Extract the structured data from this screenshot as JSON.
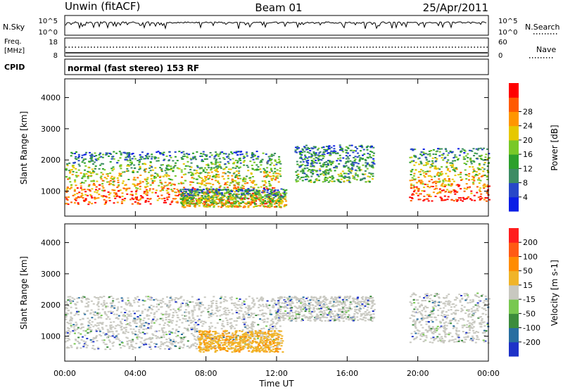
{
  "header": {
    "title": "Unwin (fitACF)",
    "beam": "Beam 01",
    "date": "25/Apr/2011"
  },
  "nsky_panel": {
    "left_label": "N.Sky",
    "right_label": "N.Search",
    "left_ticks": [
      "10^5",
      "10^0"
    ],
    "right_ticks": [
      "10^5",
      "10^0"
    ]
  },
  "freq_panel": {
    "left_label_line1": "Freq.",
    "left_label_line2": "[MHz]",
    "right_label": "Nave",
    "left_ticks": [
      "18",
      "8"
    ],
    "right_ticks": [
      "60",
      "0"
    ]
  },
  "cpid_panel": {
    "label": "CPID",
    "text": "normal (fast stereo) 153 RF"
  },
  "chart_data": [
    {
      "type": "heatmap",
      "name": "power-panel",
      "ylabel": "Slant Range [km]",
      "ylim": [
        200,
        4600
      ],
      "yticks": [
        1000,
        2000,
        3000,
        4000
      ],
      "xlim": [
        0,
        24
      ],
      "colorbar": {
        "label": "Power [dB]",
        "ticks": [
          "4",
          "8",
          "12",
          "16",
          "20",
          "24",
          "28"
        ],
        "colors": [
          "#0a1ee6",
          "#2848c8",
          "#3c8c64",
          "#2ca02c",
          "#78c828",
          "#e6c800",
          "#ff9600",
          "#ff5a00",
          "#ff0000"
        ]
      },
      "regions": [
        {
          "t0": 0.0,
          "t1": 12.2,
          "r0": 600,
          "r1": 2300,
          "level": 0.7
        },
        {
          "t0": 6.5,
          "t1": 12.5,
          "r0": 500,
          "r1": 1100,
          "level": 0.45
        },
        {
          "t0": 13.0,
          "t1": 17.5,
          "r0": 1300,
          "r1": 2500,
          "level": 0.2
        },
        {
          "t0": 19.5,
          "t1": 24.0,
          "r0": 700,
          "r1": 2400,
          "level": 0.75
        }
      ]
    },
    {
      "type": "heatmap",
      "name": "velocity-panel",
      "ylabel": "Slant Range [km]",
      "ylim": [
        200,
        4600
      ],
      "yticks": [
        1000,
        2000,
        3000,
        4000
      ],
      "xlim": [
        0,
        24
      ],
      "xticks": [
        "00:00",
        "04:00",
        "08:00",
        "12:00",
        "16:00",
        "20:00",
        "00:00"
      ],
      "xlabel": "Time UT",
      "colorbar": {
        "label": "Velocity [m s-1]",
        "ticks": [
          "200",
          "100",
          "50",
          "15",
          "-15",
          "-50",
          "-100",
          "-200"
        ],
        "colors": [
          "#1e32c8",
          "#286ea0",
          "#3c8c3c",
          "#78c850",
          "#c8c8c0",
          "#f0b428",
          "#ff8c00",
          "#ff5a14",
          "#ff1e1e"
        ]
      },
      "regions": [
        {
          "t0": 0.0,
          "t1": 12.2,
          "r0": 600,
          "r1": 2300,
          "kind": "ground"
        },
        {
          "t0": 7.5,
          "t1": 12.3,
          "r0": 500,
          "r1": 1200,
          "kind": "away"
        },
        {
          "t0": 12.0,
          "t1": 17.5,
          "r0": 1500,
          "r1": 2300,
          "kind": "ground"
        },
        {
          "t0": 19.5,
          "t1": 24.0,
          "r0": 800,
          "r1": 2400,
          "kind": "ground"
        }
      ]
    }
  ]
}
